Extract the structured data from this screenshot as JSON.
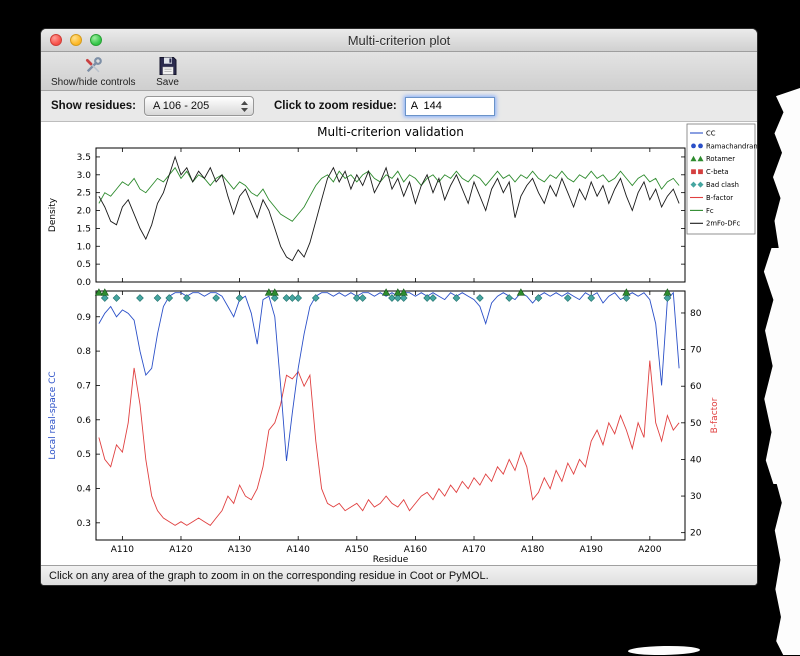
{
  "window": {
    "title": "Multi-criterion plot",
    "toolbar": {
      "items": [
        {
          "label": "Show/hide controls",
          "icon": "tools-icon"
        },
        {
          "label": "Save",
          "icon": "save-icon"
        }
      ]
    },
    "controls": {
      "show_residues_label": "Show residues:",
      "residue_range_value": "A 106 - 205",
      "zoom_label": "Click to zoom residue:",
      "zoom_value": "A  144"
    },
    "status_bar": "Click on any area of the graph to zoom in on the corresponding residue in Coot or PyMOL."
  },
  "chart_data": {
    "type": "line",
    "title": "Multi-criterion validation",
    "x": {
      "start": 106,
      "end": 205,
      "label": "Residue",
      "ticks": [
        "A110",
        "A120",
        "A130",
        "A140",
        "A150",
        "A160",
        "A170",
        "A180",
        "A190",
        "A200"
      ],
      "tick_values": [
        110,
        120,
        130,
        140,
        150,
        160,
        170,
        180,
        190,
        200
      ]
    },
    "top_plot": {
      "ylabel": "Density",
      "ylim": [
        0,
        3.75
      ],
      "yticks": [
        0.0,
        0.5,
        1.0,
        1.5,
        2.0,
        2.5,
        3.0,
        3.5
      ],
      "series": [
        {
          "name": "Fc",
          "color": "#2e8b2e",
          "values": [
            2.2,
            2.5,
            2.4,
            2.6,
            2.8,
            2.7,
            2.9,
            2.6,
            2.5,
            2.7,
            2.9,
            2.8,
            3.0,
            3.2,
            2.9,
            3.1,
            2.8,
            3.0,
            2.9,
            2.7,
            2.9,
            3.0,
            2.8,
            2.6,
            2.8,
            2.7,
            2.5,
            2.4,
            2.6,
            2.3,
            2.1,
            1.9,
            1.8,
            1.7,
            1.9,
            2.1,
            2.4,
            2.7,
            2.9,
            3.0,
            2.8,
            3.1,
            2.9,
            3.0,
            2.8,
            3.0,
            3.1,
            2.9,
            2.8,
            3.0,
            2.9,
            3.1,
            2.8,
            3.0,
            2.9,
            2.7,
            2.9,
            3.0,
            2.8,
            3.0,
            2.9,
            3.1,
            2.9,
            2.8,
            3.0,
            2.9,
            2.7,
            2.9,
            3.1,
            2.9,
            3.0,
            2.8,
            3.0,
            2.9,
            3.1,
            2.9,
            2.8,
            3.0,
            2.9,
            3.1,
            2.9,
            2.8,
            3.0,
            2.9,
            3.1,
            2.9,
            3.0,
            2.8,
            2.9,
            3.1,
            2.9,
            2.7,
            2.9,
            3.0,
            2.8,
            2.9,
            2.6,
            2.8,
            2.9,
            2.7
          ]
        },
        {
          "name": "2mFo-DFc",
          "color": "#1a1a1a",
          "values": [
            2.4,
            2.1,
            1.7,
            1.6,
            2.1,
            2.3,
            1.9,
            1.5,
            1.2,
            1.6,
            2.2,
            2.5,
            3.0,
            3.5,
            3.0,
            3.2,
            2.8,
            3.1,
            2.9,
            3.2,
            2.8,
            3.0,
            2.4,
            1.9,
            2.4,
            2.6,
            2.2,
            1.8,
            2.3,
            2.0,
            1.5,
            1.0,
            0.7,
            0.6,
            0.9,
            0.7,
            1.1,
            1.7,
            2.3,
            2.9,
            3.2,
            2.8,
            3.1,
            2.6,
            3.0,
            2.7,
            3.1,
            2.5,
            2.8,
            3.2,
            2.6,
            2.9,
            2.4,
            2.8,
            2.2,
            2.7,
            3.0,
            2.5,
            2.9,
            2.3,
            2.7,
            3.0,
            2.6,
            2.2,
            2.8,
            2.4,
            2.0,
            2.6,
            2.9,
            2.5,
            2.8,
            1.8,
            2.4,
            2.7,
            2.9,
            2.5,
            2.2,
            2.7,
            2.4,
            2.9,
            2.5,
            2.1,
            2.6,
            2.3,
            2.8,
            2.4,
            2.7,
            2.2,
            2.6,
            2.9,
            2.4,
            2.0,
            2.5,
            2.8,
            2.3,
            2.6,
            2.1,
            2.4,
            2.6,
            2.2
          ]
        }
      ]
    },
    "bottom_plot": {
      "ylabel_left": "Local real-space CC",
      "ylabel_right": "B-factor",
      "ylim_left": [
        0.25,
        0.975
      ],
      "ylim_right": [
        18,
        86
      ],
      "yticks_left": [
        0.3,
        0.4,
        0.5,
        0.6,
        0.7,
        0.8,
        0.9
      ],
      "yticks_right": [
        20,
        30,
        40,
        50,
        60,
        70,
        80
      ],
      "series": [
        {
          "name": "CC",
          "axis": "left",
          "color": "#2b50c8",
          "values": [
            0.88,
            0.91,
            0.93,
            0.9,
            0.92,
            0.91,
            0.89,
            0.8,
            0.73,
            0.75,
            0.85,
            0.93,
            0.96,
            0.97,
            0.97,
            0.96,
            0.97,
            0.97,
            0.96,
            0.97,
            0.97,
            0.96,
            0.93,
            0.9,
            0.95,
            0.96,
            0.91,
            0.82,
            0.95,
            0.96,
            0.9,
            0.7,
            0.48,
            0.62,
            0.75,
            0.85,
            0.93,
            0.96,
            0.97,
            0.97,
            0.96,
            0.97,
            0.96,
            0.97,
            0.96,
            0.97,
            0.97,
            0.96,
            0.97,
            0.96,
            0.97,
            0.96,
            0.97,
            0.97,
            0.96,
            0.97,
            0.96,
            0.97,
            0.96,
            0.95,
            0.97,
            0.96,
            0.97,
            0.96,
            0.95,
            0.93,
            0.88,
            0.94,
            0.96,
            0.97,
            0.96,
            0.95,
            0.97,
            0.96,
            0.94,
            0.96,
            0.97,
            0.96,
            0.97,
            0.96,
            0.97,
            0.96,
            0.95,
            0.97,
            0.96,
            0.97,
            0.94,
            0.96,
            0.97,
            0.95,
            0.96,
            0.97,
            0.96,
            0.97,
            0.95,
            0.88,
            0.7,
            0.95,
            0.97,
            0.75
          ]
        },
        {
          "name": "B-factor",
          "axis": "right",
          "color": "#e04040",
          "values": [
            46,
            40,
            38,
            44,
            42,
            50,
            65,
            55,
            40,
            30,
            26,
            24,
            23,
            22,
            23,
            22,
            23,
            24,
            23,
            22,
            24,
            26,
            30,
            28,
            33,
            30,
            29,
            32,
            38,
            48,
            50,
            55,
            63,
            62,
            64,
            60,
            63,
            45,
            32,
            28,
            27,
            28,
            26,
            27,
            28,
            26,
            29,
            27,
            28,
            30,
            28,
            27,
            29,
            26,
            28,
            30,
            31,
            29,
            32,
            30,
            33,
            31,
            34,
            32,
            35,
            33,
            36,
            34,
            38,
            36,
            40,
            37,
            42,
            38,
            29,
            31,
            35,
            32,
            37,
            34,
            39,
            36,
            40,
            38,
            45,
            48,
            44,
            50,
            47,
            52,
            48,
            43,
            50,
            46,
            67,
            50,
            45,
            52,
            48,
            50
          ]
        }
      ],
      "markers": {
        "bad_clash": {
          "color": "#45a5a0",
          "residues": [
            107,
            109,
            113,
            116,
            118,
            121,
            126,
            130,
            136,
            138,
            139,
            140,
            143,
            150,
            151,
            156,
            157,
            158,
            162,
            163,
            167,
            171,
            176,
            181,
            186,
            190,
            196,
            203
          ]
        },
        "rotamer": {
          "color": "#2e8b2e",
          "residues": [
            106,
            107,
            135,
            136,
            155,
            157,
            158,
            178,
            196,
            203
          ]
        },
        "ramachandran": {
          "color": "#2b50c8",
          "residues": []
        },
        "c_beta": {
          "color": "#d43f3f",
          "residues": []
        }
      }
    },
    "legend": [
      {
        "label": "CC",
        "type": "line",
        "color": "#2b50c8"
      },
      {
        "label": "Ramachandran",
        "type": "circles",
        "color": "#2b50c8"
      },
      {
        "label": "Rotamer",
        "type": "triangles",
        "color": "#2e8b2e"
      },
      {
        "label": "C-beta",
        "type": "squares",
        "color": "#d43f3f"
      },
      {
        "label": "Bad clash",
        "type": "diamonds",
        "color": "#45a5a0"
      },
      {
        "label": "B-factor",
        "type": "line",
        "color": "#e04040"
      },
      {
        "label": "Fc",
        "type": "line",
        "color": "#2e8b2e"
      },
      {
        "label": "2mFo-DFc",
        "type": "line",
        "color": "#1a1a1a"
      }
    ]
  }
}
